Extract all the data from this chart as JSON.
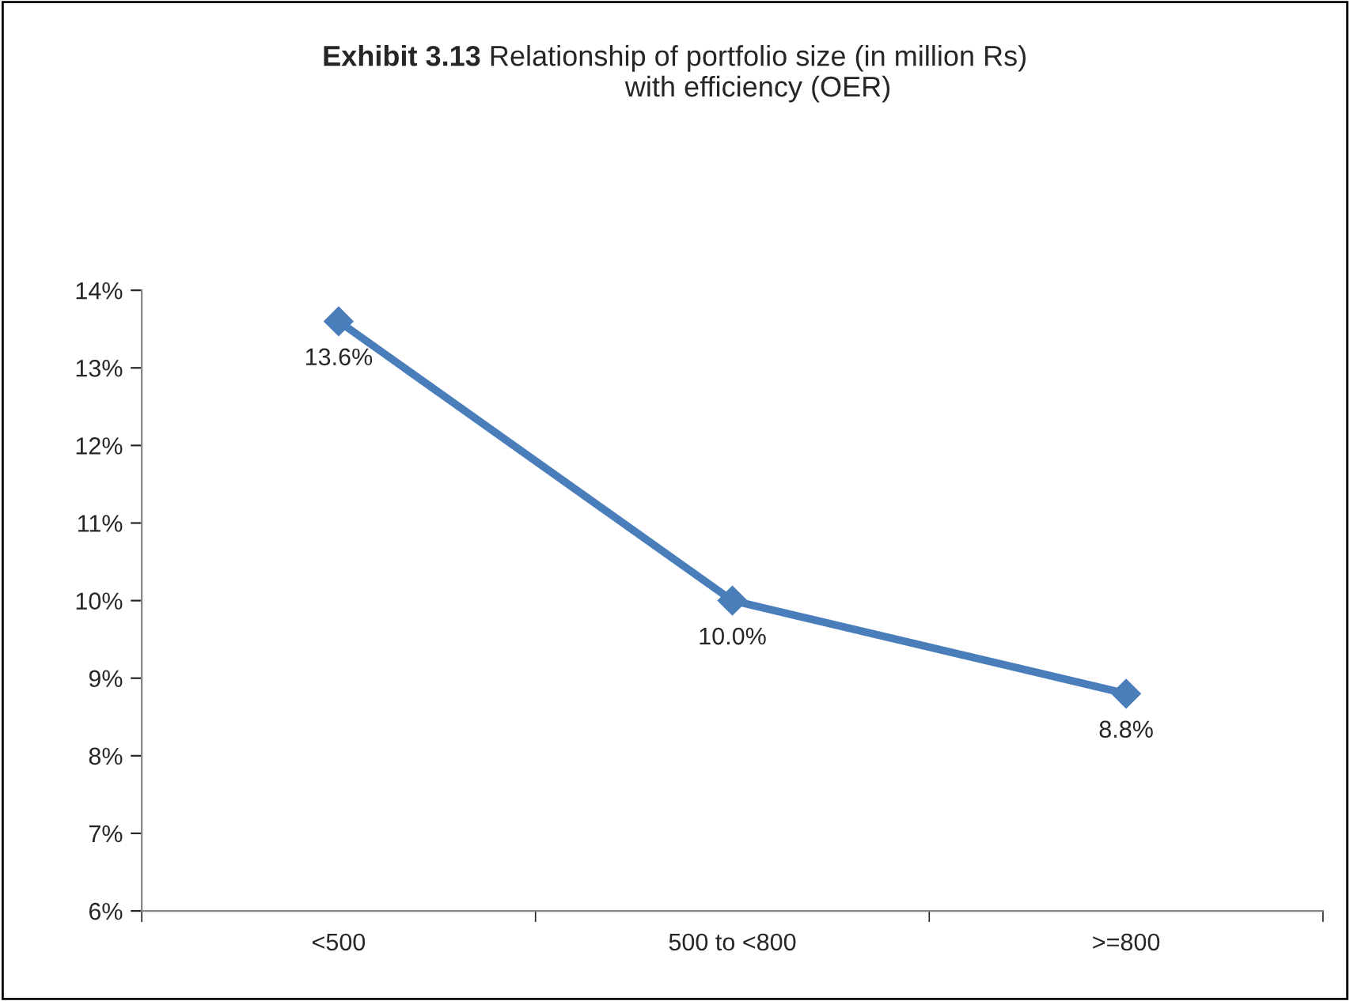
{
  "chart_data": {
    "type": "line",
    "title": "Exhibit 3.13",
    "subtitle": "Relationship of portfolio size (in million Rs)\nwith efficiency (OER)",
    "categories": [
      "<500",
      "500 to <800",
      ">=800"
    ],
    "series": [
      {
        "color": "#4a7ebb",
        "values": [
          13.6,
          10.0,
          8.8
        ]
      }
    ],
    "value_labels": [
      "13.6%",
      "10.0%",
      "8.8%"
    ],
    "ylim": [
      6,
      14
    ],
    "yticks": [
      {
        "value": 6,
        "label": "6%"
      },
      {
        "value": 7,
        "label": "7%"
      },
      {
        "value": 8,
        "label": "8%"
      },
      {
        "value": 9,
        "label": "9%"
      },
      {
        "value": 10,
        "label": "10%"
      },
      {
        "value": 11,
        "label": "11%"
      },
      {
        "value": 12,
        "label": "12%"
      },
      {
        "value": 13,
        "label": "13%"
      },
      {
        "value": 14,
        "label": "14%"
      }
    ],
    "marker": "diamond",
    "line_style": "solid",
    "grid": false,
    "legend": false
  }
}
